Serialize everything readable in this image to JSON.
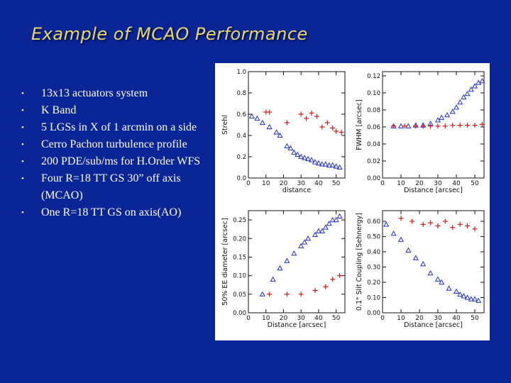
{
  "slide": {
    "title": "Example of MCAO Performance",
    "bullets": [
      "13x13 actuators system",
      "K Band",
      "5 LGSs in X of 1 arcmin on a side",
      "Cerro Pachon turbulence profile",
      "200 PDE/sub/ms for H.Order WFS",
      "Four R=18 TT GS 30” off axis (MCAO)",
      "One R=18 TT GS on axis(AO)"
    ]
  },
  "colors": {
    "mcao": "#1f2fd0",
    "ao": "#d81818",
    "axis": "#111111",
    "background": "#0a2596",
    "title": "#e8d76a"
  },
  "chart_data": [
    {
      "type": "scatter",
      "xlabel": "distance",
      "ylabel": "Strehl",
      "xlim": [
        0,
        55
      ],
      "ylim": [
        0,
        1.0
      ],
      "xticks": [
        0,
        10,
        20,
        30,
        40,
        50
      ],
      "yticks": [
        0.0,
        0.2,
        0.4,
        0.6,
        0.8,
        1.0
      ],
      "ytick_labels": [
        "0.0",
        "0.2",
        "0.4",
        "0.6",
        "0.8",
        "1.0"
      ],
      "series": [
        {
          "marker": "triangle",
          "x": [
            2,
            5,
            8,
            12,
            16,
            18,
            22,
            24,
            26,
            28,
            30,
            32,
            34,
            36,
            38,
            40,
            42,
            44,
            46,
            48,
            50,
            52
          ],
          "y": [
            0.58,
            0.56,
            0.52,
            0.48,
            0.43,
            0.4,
            0.3,
            0.28,
            0.24,
            0.22,
            0.2,
            0.19,
            0.18,
            0.17,
            0.15,
            0.14,
            0.13,
            0.13,
            0.12,
            0.12,
            0.11,
            0.1
          ]
        },
        {
          "marker": "plus",
          "x": [
            10,
            12,
            22,
            30,
            33,
            36,
            39,
            42,
            45,
            48,
            50,
            53
          ],
          "y": [
            0.62,
            0.62,
            0.52,
            0.6,
            0.56,
            0.61,
            0.58,
            0.48,
            0.52,
            0.47,
            0.44,
            0.43
          ]
        }
      ]
    },
    {
      "type": "scatter",
      "xlabel": "Distance [arcsec]",
      "ylabel": "FWHM [arcsec]",
      "xlim": [
        0,
        55
      ],
      "ylim": [
        0.0,
        0.125
      ],
      "xticks": [
        0,
        10,
        20,
        30,
        40,
        50
      ],
      "yticks": [
        0.0,
        0.02,
        0.04,
        0.06,
        0.08,
        0.1,
        0.12
      ],
      "ytick_labels": [
        "0.00",
        "0.02",
        "0.04",
        "0.06",
        "0.08",
        "0.10",
        "0.12"
      ],
      "series": [
        {
          "marker": "triangle",
          "x": [
            6,
            10,
            14,
            18,
            22,
            26,
            30,
            32,
            35,
            38,
            40,
            42,
            44,
            46,
            48,
            50,
            52,
            54
          ],
          "y": [
            0.061,
            0.061,
            0.061,
            0.062,
            0.062,
            0.064,
            0.068,
            0.071,
            0.074,
            0.078,
            0.083,
            0.089,
            0.095,
            0.099,
            0.104,
            0.108,
            0.112,
            0.114
          ]
        },
        {
          "marker": "plus",
          "x": [
            6,
            12,
            18,
            22,
            26,
            30,
            34,
            38,
            42,
            46,
            50,
            54
          ],
          "y": [
            0.061,
            0.061,
            0.061,
            0.061,
            0.061,
            0.061,
            0.061,
            0.062,
            0.062,
            0.062,
            0.062,
            0.063
          ]
        }
      ]
    },
    {
      "type": "scatter",
      "xlabel": "Distance [arcsec]",
      "ylabel": "50% EE diameter [arcsec]",
      "xlim": [
        0,
        55
      ],
      "ylim": [
        0,
        0.275
      ],
      "xticks": [
        0,
        10,
        20,
        30,
        40,
        50
      ],
      "yticks": [
        0.0,
        0.05,
        0.1,
        0.15,
        0.2,
        0.25
      ],
      "ytick_labels": [
        "0.00",
        "0.05",
        "0.10",
        "0.15",
        "0.20",
        "0.25"
      ],
      "series": [
        {
          "marker": "triangle",
          "x": [
            8,
            14,
            18,
            22,
            26,
            30,
            32,
            34,
            38,
            40,
            42,
            44,
            46,
            48,
            50,
            52
          ],
          "y": [
            0.05,
            0.09,
            0.12,
            0.14,
            0.16,
            0.18,
            0.19,
            0.2,
            0.21,
            0.22,
            0.22,
            0.23,
            0.24,
            0.25,
            0.25,
            0.26
          ]
        },
        {
          "marker": "plus",
          "x": [
            12,
            22,
            30,
            38,
            44,
            48,
            52
          ],
          "y": [
            0.05,
            0.05,
            0.05,
            0.06,
            0.07,
            0.09,
            0.1
          ]
        }
      ]
    },
    {
      "type": "scatter",
      "xlabel": "Distance [arcsec]",
      "ylabel": "0.1\" Slit Coupling [Sehnergy]",
      "xlim": [
        0,
        55
      ],
      "ylim": [
        0,
        0.67
      ],
      "xticks": [
        0,
        10,
        20,
        30,
        40,
        50
      ],
      "xtick_labels": [
        "0",
        "10",
        "20",
        "30",
        "40",
        "50"
      ],
      "yticks": [
        0.0,
        0.1,
        0.2,
        0.3,
        0.4,
        0.5,
        0.6
      ],
      "ytick_labels": [
        "0.00",
        "0.10",
        "0.20",
        "0.30",
        "0.40",
        "0.50",
        "0.60"
      ],
      "series": [
        {
          "marker": "triangle",
          "x": [
            2,
            6,
            10,
            14,
            18,
            22,
            26,
            30,
            32,
            36,
            40,
            42,
            44,
            46,
            48,
            50,
            52
          ],
          "y": [
            0.58,
            0.52,
            0.48,
            0.41,
            0.36,
            0.32,
            0.26,
            0.22,
            0.2,
            0.16,
            0.14,
            0.12,
            0.11,
            0.1,
            0.09,
            0.09,
            0.08
          ]
        },
        {
          "marker": "plus",
          "x": [
            10,
            16,
            22,
            26,
            30,
            34,
            38,
            42,
            46,
            50
          ],
          "y": [
            0.62,
            0.6,
            0.58,
            0.59,
            0.57,
            0.6,
            0.56,
            0.58,
            0.57,
            0.55
          ]
        }
      ]
    }
  ]
}
